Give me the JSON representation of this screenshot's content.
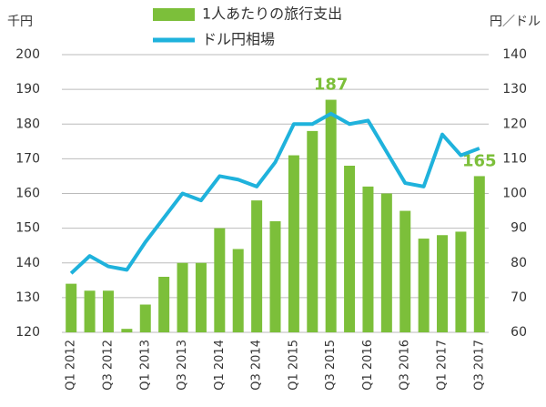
{
  "chart_data": {
    "type": "bar",
    "y_label": "千円",
    "y2_label": "円／ドル",
    "categories": [
      "Q1 2012",
      null,
      "Q3 2012",
      null,
      "Q1 2013",
      null,
      "Q3 2013",
      null,
      "Q1 2014",
      null,
      "Q3 2014",
      null,
      "Q1 2015",
      null,
      "Q3 2015",
      null,
      "Q1 2016",
      null,
      "Q3 2016",
      null,
      "Q1 2017",
      null,
      "Q3 2017"
    ],
    "series": [
      {
        "name": "1人あたりの旅行支出",
        "type": "bar",
        "color": "#7cbf3a",
        "values": [
          134,
          132,
          132,
          121,
          128,
          136,
          140,
          140,
          150,
          144,
          158,
          152,
          171,
          178,
          187,
          168,
          162,
          160,
          155,
          147,
          148,
          149,
          165
        ],
        "value_labels": [
          null,
          null,
          null,
          null,
          null,
          null,
          null,
          null,
          null,
          null,
          null,
          null,
          null,
          null,
          "187",
          null,
          null,
          null,
          null,
          null,
          null,
          null,
          "165"
        ]
      },
      {
        "name": "ドル円相場",
        "type": "line",
        "axis": "y2",
        "color": "#1fb2dc",
        "values": [
          77,
          82,
          79,
          78,
          86,
          93,
          100,
          98,
          105,
          104,
          102,
          109,
          120,
          120,
          123,
          120,
          121,
          112,
          103,
          102,
          117,
          111,
          113
        ]
      }
    ],
    "ylim": [
      120,
      200
    ],
    "yticks": [
      120,
      130,
      140,
      150,
      160,
      170,
      180,
      190,
      200
    ],
    "y2lim": [
      60,
      140
    ],
    "y2ticks": [
      60,
      70,
      80,
      90,
      100,
      110,
      120,
      130,
      140
    ],
    "grid": true
  }
}
